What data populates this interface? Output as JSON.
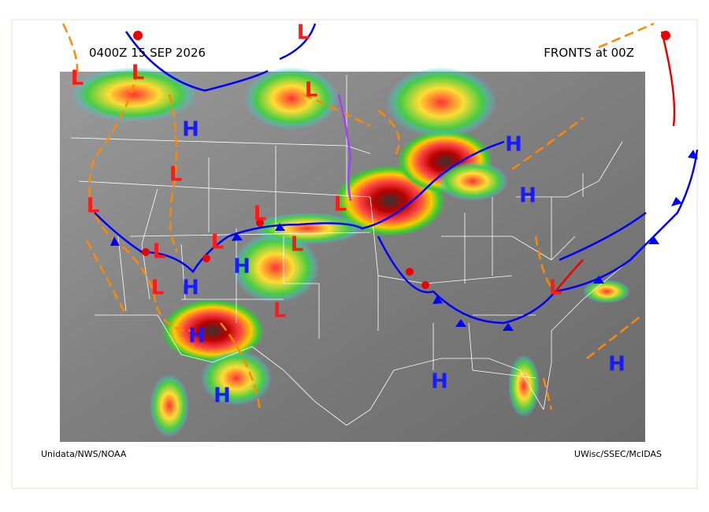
{
  "header": {
    "time": "0400Z 15 SEP 2026",
    "title": "FRONTS at 00Z"
  },
  "footer": {
    "left": "Unidata/NWS/NOAA",
    "right": "UWisc/SSEC/McIDAS"
  },
  "pressure_centers": [
    {
      "label": "L",
      "color": "#ff1a1a"
    },
    {
      "label": "L",
      "color": "#ff1a1a"
    },
    {
      "label": "L",
      "color": "#ff1a1a"
    },
    {
      "label": "L",
      "color": "#ff1a1a"
    },
    {
      "label": "L",
      "color": "#ff1a1a"
    },
    {
      "label": "L",
      "color": "#ff1a1a"
    },
    {
      "label": "L",
      "color": "#ff1a1a"
    },
    {
      "label": "L",
      "color": "#ff1a1a"
    },
    {
      "label": "L",
      "color": "#ff1a1a"
    },
    {
      "label": "L",
      "color": "#ff1a1a"
    },
    {
      "label": "L",
      "color": "#ff1a1a"
    },
    {
      "label": "L",
      "color": "#ff1a1a"
    },
    {
      "label": "L",
      "color": "#ff1a1a"
    },
    {
      "label": "L",
      "color": "#ff1a1a"
    },
    {
      "label": "H",
      "color": "#1a1aff"
    },
    {
      "label": "H",
      "color": "#1a1aff"
    },
    {
      "label": "H",
      "color": "#1a1aff"
    },
    {
      "label": "H",
      "color": "#1a1aff"
    },
    {
      "label": "H",
      "color": "#1a1aff"
    },
    {
      "label": "H",
      "color": "#1a1aff"
    },
    {
      "label": "H",
      "color": "#1a1aff"
    },
    {
      "label": "H",
      "color": "#1a1aff"
    },
    {
      "label": "H",
      "color": "#1a1aff"
    }
  ]
}
